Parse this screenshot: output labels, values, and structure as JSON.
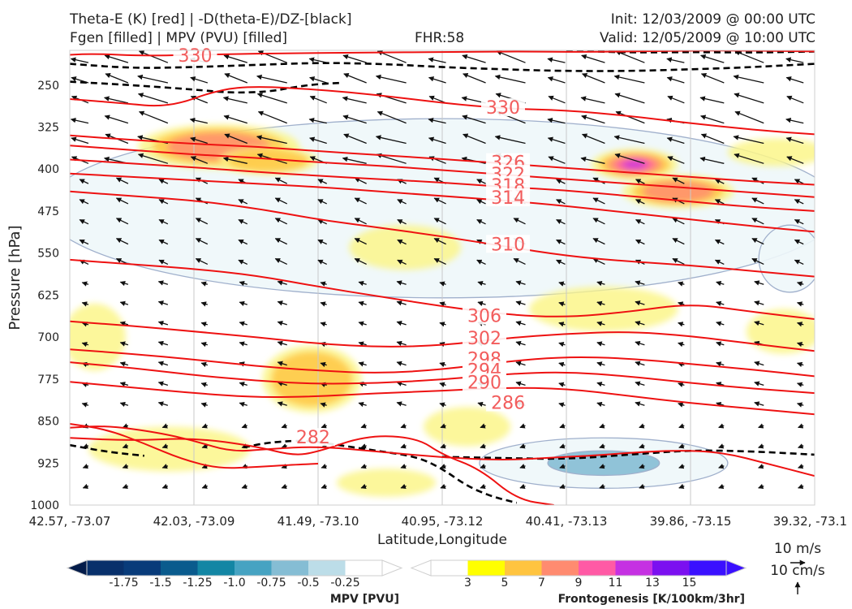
{
  "header": {
    "left_line1": "Theta-E (K) [red] | -D(theta-E)/DZ-[black]",
    "left_line2": "Fgen [filled] | MPV (PVU) [filled]",
    "fhr": "FHR:58",
    "right_line1": "Init: 12/03/2009 @ 00:00 UTC",
    "right_line2": "Valid: 12/05/2009 @ 10:00 UTC"
  },
  "colors": {
    "theta_e": "#ee1111",
    "theta_label": "#f25c5c",
    "ddz": "#000000",
    "mpv_outline": "#a0b0cc"
  },
  "chart_data": {
    "type": "cross-section",
    "ylabel": "Pressure [hPa]",
    "xlabel": "Latitude,Longitude",
    "y_ticks": [
      250,
      325,
      400,
      475,
      550,
      625,
      700,
      775,
      850,
      925,
      1000
    ],
    "y_scale": "linear, inverted (1000 hPa at bottom)",
    "ylim": [
      1000,
      188
    ],
    "x_ticks": [
      "42.57, -73.07",
      "42.03, -73.09",
      "41.49, -73.10",
      "40.95, -73.12",
      "40.41, -73.13",
      "39.86, -73.15",
      "39.32, -73.1"
    ],
    "theta_e_contour_labels": [
      {
        "value": "330",
        "x": 1.01,
        "p": 198
      },
      {
        "value": "330",
        "x": 3.49,
        "p": 291
      },
      {
        "value": "326",
        "x": 3.53,
        "p": 389
      },
      {
        "value": "322",
        "x": 3.53,
        "p": 410
      },
      {
        "value": "318",
        "x": 3.53,
        "p": 430
      },
      {
        "value": "314",
        "x": 3.53,
        "p": 452
      },
      {
        "value": "310",
        "x": 3.53,
        "p": 535
      },
      {
        "value": "306",
        "x": 3.34,
        "p": 663
      },
      {
        "value": "302",
        "x": 3.34,
        "p": 703
      },
      {
        "value": "298",
        "x": 3.34,
        "p": 740
      },
      {
        "value": "294",
        "x": 3.34,
        "p": 760
      },
      {
        "value": "290",
        "x": 3.34,
        "p": 782
      },
      {
        "value": "286",
        "x": 3.53,
        "p": 818
      },
      {
        "value": "282",
        "x": 1.96,
        "p": 880
      }
    ],
    "theta_e_lines": [
      [
        [
          0.0,
          196
        ],
        [
          0.2,
          194
        ],
        [
          0.6,
          198
        ],
        [
          1.2,
          195
        ],
        [
          1.8,
          193
        ],
        [
          2.4,
          192
        ],
        [
          3.0,
          191
        ],
        [
          3.6,
          190
        ],
        [
          4.2,
          191
        ],
        [
          4.8,
          189
        ],
        [
          5.4,
          188
        ],
        [
          6.0,
          190
        ]
      ],
      [
        [
          0.0,
          275
        ],
        [
          0.4,
          282
        ],
        [
          0.8,
          290
        ],
        [
          1.2,
          258
        ],
        [
          1.5,
          252
        ],
        [
          2.0,
          258
        ],
        [
          2.5,
          268
        ],
        [
          3.0,
          282
        ],
        [
          3.5,
          292
        ],
        [
          4.0,
          295
        ],
        [
          4.5,
          305
        ],
        [
          5.0,
          318
        ],
        [
          5.5,
          330
        ],
        [
          6.0,
          338
        ]
      ],
      [
        [
          0.0,
          340
        ],
        [
          0.5,
          348
        ],
        [
          1.0,
          355
        ],
        [
          1.5,
          360
        ],
        [
          2.0,
          368
        ],
        [
          2.5,
          375
        ],
        [
          3.0,
          382
        ],
        [
          3.5,
          390
        ],
        [
          4.0,
          398
        ],
        [
          4.5,
          406
        ],
        [
          5.0,
          414
        ],
        [
          5.5,
          422
        ],
        [
          6.0,
          428
        ]
      ],
      [
        [
          0.0,
          358
        ],
        [
          0.5,
          366
        ],
        [
          1.0,
          374
        ],
        [
          1.5,
          380
        ],
        [
          2.0,
          388
        ],
        [
          2.5,
          394
        ],
        [
          3.0,
          402
        ],
        [
          3.5,
          410
        ],
        [
          4.0,
          418
        ],
        [
          4.5,
          426
        ],
        [
          5.0,
          434
        ],
        [
          5.5,
          442
        ],
        [
          6.0,
          450
        ]
      ],
      [
        [
          0.0,
          383
        ],
        [
          0.5,
          390
        ],
        [
          1.0,
          397
        ],
        [
          1.5,
          405
        ],
        [
          2.0,
          412
        ],
        [
          2.5,
          418
        ],
        [
          3.0,
          424
        ],
        [
          3.5,
          432
        ],
        [
          4.0,
          438
        ],
        [
          4.5,
          448
        ],
        [
          5.0,
          458
        ],
        [
          5.5,
          468
        ],
        [
          6.0,
          475
        ]
      ],
      [
        [
          0.0,
          408
        ],
        [
          0.5,
          414
        ],
        [
          1.0,
          420
        ],
        [
          1.5,
          426
        ],
        [
          2.0,
          432
        ],
        [
          2.5,
          440
        ],
        [
          3.0,
          448
        ],
        [
          3.5,
          456
        ],
        [
          4.0,
          466
        ],
        [
          4.5,
          478
        ],
        [
          5.0,
          490
        ],
        [
          5.5,
          502
        ],
        [
          6.0,
          512
        ]
      ],
      [
        [
          0.0,
          440
        ],
        [
          0.5,
          448
        ],
        [
          1.0,
          456
        ],
        [
          1.5,
          470
        ],
        [
          2.0,
          490
        ],
        [
          2.5,
          505
        ],
        [
          3.0,
          520
        ],
        [
          3.5,
          538
        ],
        [
          4.0,
          555
        ],
        [
          4.5,
          565
        ],
        [
          5.0,
          572
        ],
        [
          5.5,
          582
        ],
        [
          6.0,
          592
        ]
      ],
      [
        [
          0.0,
          562
        ],
        [
          0.5,
          570
        ],
        [
          1.0,
          578
        ],
        [
          1.5,
          590
        ],
        [
          2.0,
          610
        ],
        [
          2.5,
          628
        ],
        [
          3.0,
          645
        ],
        [
          3.5,
          660
        ],
        [
          4.0,
          665
        ],
        [
          4.5,
          655
        ],
        [
          5.0,
          640
        ],
        [
          5.5,
          655
        ],
        [
          6.0,
          668
        ]
      ],
      [
        [
          0.0,
          672
        ],
        [
          0.5,
          680
        ],
        [
          1.0,
          690
        ],
        [
          1.5,
          700
        ],
        [
          2.0,
          712
        ],
        [
          2.5,
          718
        ],
        [
          3.0,
          715
        ],
        [
          3.5,
          702
        ],
        [
          4.0,
          694
        ],
        [
          4.5,
          690
        ],
        [
          5.0,
          698
        ],
        [
          5.5,
          712
        ],
        [
          6.0,
          725
        ]
      ],
      [
        [
          0.0,
          722
        ],
        [
          0.5,
          730
        ],
        [
          1.0,
          740
        ],
        [
          1.5,
          752
        ],
        [
          2.0,
          760
        ],
        [
          2.5,
          765
        ],
        [
          3.0,
          758
        ],
        [
          3.5,
          744
        ],
        [
          4.0,
          735
        ],
        [
          4.5,
          738
        ],
        [
          5.0,
          748
        ],
        [
          5.5,
          758
        ],
        [
          6.0,
          770
        ]
      ],
      [
        [
          0.0,
          745
        ],
        [
          0.5,
          755
        ],
        [
          1.0,
          768
        ],
        [
          1.5,
          778
        ],
        [
          2.0,
          784
        ],
        [
          2.5,
          782
        ],
        [
          3.0,
          776
        ],
        [
          3.5,
          766
        ],
        [
          4.0,
          762
        ],
        [
          4.5,
          770
        ],
        [
          5.0,
          782
        ],
        [
          5.5,
          792
        ],
        [
          6.0,
          800
        ]
      ],
      [
        [
          0.0,
          780
        ],
        [
          0.5,
          790
        ],
        [
          1.0,
          800
        ],
        [
          1.5,
          808
        ],
        [
          2.0,
          806
        ],
        [
          2.5,
          800
        ],
        [
          3.0,
          796
        ],
        [
          3.5,
          790
        ],
        [
          4.0,
          792
        ],
        [
          4.5,
          805
        ],
        [
          5.0,
          818
        ],
        [
          5.5,
          828
        ],
        [
          6.0,
          838
        ]
      ],
      [
        [
          0.0,
          862
        ],
        [
          0.3,
          858
        ],
        [
          0.7,
          870
        ],
        [
          1.0,
          885
        ],
        [
          1.3,
          905
        ],
        [
          1.6,
          900
        ],
        [
          2.0,
          895
        ],
        [
          2.5,
          905
        ],
        [
          3.0,
          915
        ],
        [
          3.5,
          920
        ],
        [
          3.9,
          915
        ],
        [
          4.2,
          912
        ],
        [
          4.6,
          905
        ],
        [
          5.0,
          902
        ],
        [
          5.3,
          908
        ],
        [
          5.6,
          925
        ],
        [
          6.0,
          948
        ]
      ],
      [
        [
          0.0,
          880
        ],
        [
          0.5,
          885
        ],
        [
          1.0,
          880
        ],
        [
          1.5,
          895
        ],
        [
          1.8,
          912
        ],
        [
          2.0,
          905
        ],
        [
          2.4,
          875
        ],
        [
          2.8,
          880
        ],
        [
          3.0,
          910
        ],
        [
          3.3,
          935
        ],
        [
          3.6,
          990
        ],
        [
          3.9,
          1000
        ]
      ],
      [
        [
          0.0,
          855
        ],
        [
          0.3,
          865
        ],
        [
          0.6,
          890
        ],
        [
          0.9,
          918
        ],
        [
          1.2,
          935
        ],
        [
          1.5,
          932
        ],
        [
          1.8,
          928
        ],
        [
          2.0,
          926
        ]
      ]
    ],
    "ddz_lines": [
      [
        [
          0.0,
          212
        ],
        [
          0.5,
          220
        ],
        [
          1.0,
          218
        ],
        [
          1.5,
          214
        ],
        [
          2.0,
          210
        ],
        [
          2.5,
          212
        ],
        [
          3.0,
          218
        ],
        [
          3.5,
          222
        ],
        [
          4.0,
          225
        ],
        [
          4.5,
          225
        ],
        [
          5.0,
          222
        ],
        [
          5.5,
          218
        ],
        [
          6.0,
          212
        ]
      ],
      [
        [
          0.0,
          244
        ],
        [
          0.5,
          250
        ],
        [
          1.0,
          258
        ],
        [
          1.3,
          264
        ],
        [
          1.6,
          262
        ],
        [
          1.8,
          254
        ],
        [
          2.0,
          248
        ],
        [
          2.2,
          246
        ]
      ],
      [
        [
          0.0,
          893
        ],
        [
          0.3,
          905
        ],
        [
          0.6,
          912
        ]
      ],
      [
        [
          1.4,
          897
        ],
        [
          1.6,
          888
        ],
        [
          1.9,
          884
        ],
        [
          2.2,
          894
        ],
        [
          2.5,
          904
        ],
        [
          2.8,
          914
        ],
        [
          3.0,
          935
        ],
        [
          3.2,
          966
        ],
        [
          3.4,
          985
        ],
        [
          3.6,
          996
        ]
      ],
      [
        [
          3.0,
          914
        ],
        [
          3.5,
          916
        ],
        [
          4.0,
          918
        ],
        [
          4.5,
          910
        ],
        [
          5.0,
          902
        ],
        [
          5.5,
          904
        ],
        [
          6.0,
          910
        ]
      ],
      [
        [
          4.0,
          188
        ],
        [
          4.5,
          192
        ],
        [
          5.0,
          191
        ],
        [
          5.5,
          192
        ],
        [
          6.0,
          190
        ]
      ]
    ],
    "fgen_legend": {
      "label": "Frontogenesis [K/100km/3hr]",
      "ticks": [
        "3",
        "5",
        "7",
        "9",
        "11",
        "13",
        "15"
      ],
      "colors": [
        "#ffffff",
        "#ffff00",
        "#ffc440",
        "#ff8b70",
        "#ff5aa5",
        "#c531e2",
        "#7b10f0",
        "#3a10ff"
      ]
    },
    "fgen_fill": [
      {
        "x": 1.2,
        "p": 360,
        "rx": 0.65,
        "rp": 40,
        "level": 7
      },
      {
        "x": 1.6,
        "p": 385,
        "rx": 0.4,
        "rp": 25,
        "level": 5
      },
      {
        "x": 4.55,
        "p": 392,
        "rx": 0.35,
        "rp": 28,
        "level": 11
      },
      {
        "x": 4.9,
        "p": 440,
        "rx": 0.45,
        "rp": 30,
        "level": 7
      },
      {
        "x": 1.95,
        "p": 775,
        "rx": 0.4,
        "rp": 60,
        "level": 5
      },
      {
        "x": 0.2,
        "p": 700,
        "rx": 0.25,
        "rp": 60,
        "level": 3
      },
      {
        "x": 0.8,
        "p": 900,
        "rx": 0.65,
        "rp": 40,
        "level": 3
      },
      {
        "x": 2.7,
        "p": 540,
        "rx": 0.45,
        "rp": 40,
        "level": 3
      },
      {
        "x": 4.3,
        "p": 650,
        "rx": 0.6,
        "rp": 40,
        "level": 3
      },
      {
        "x": 3.2,
        "p": 860,
        "rx": 0.35,
        "rp": 35,
        "level": 3
      },
      {
        "x": 2.55,
        "p": 960,
        "rx": 0.4,
        "rp": 25,
        "level": 3
      },
      {
        "x": 5.7,
        "p": 370,
        "rx": 0.4,
        "rp": 25,
        "level": 3
      },
      {
        "x": 5.75,
        "p": 690,
        "rx": 0.3,
        "rp": 40,
        "level": 3
      }
    ],
    "mpv_legend": {
      "label": "MPV [PVU]",
      "ticks": [
        "-1.75",
        "-1.5",
        "-1.25",
        "-1.0",
        "-0.75",
        "-0.5",
        "-0.25"
      ],
      "colors": [
        "#08306b",
        "#083b7a",
        "#0a5b8d",
        "#1386a4",
        "#46a3c2",
        "#85bdd4",
        "#bcdde8",
        "#ffffff"
      ]
    },
    "mpv_fill": [
      {
        "x": 3.0,
        "p": 470,
        "rx": 3.2,
        "rp": 160,
        "level": -0.25
      },
      {
        "x": 4.3,
        "p": 925,
        "rx": 1.0,
        "rp": 45,
        "level": -0.25
      },
      {
        "x": 4.3,
        "p": 925,
        "rx": 0.45,
        "rp": 22,
        "level": -0.5
      },
      {
        "x": 5.8,
        "p": 560,
        "rx": 0.25,
        "rp": 60,
        "level": -0.25
      }
    ],
    "wind_vector_legend": {
      "horizontal": "10 m/s",
      "vertical": "10 cm/s"
    }
  }
}
